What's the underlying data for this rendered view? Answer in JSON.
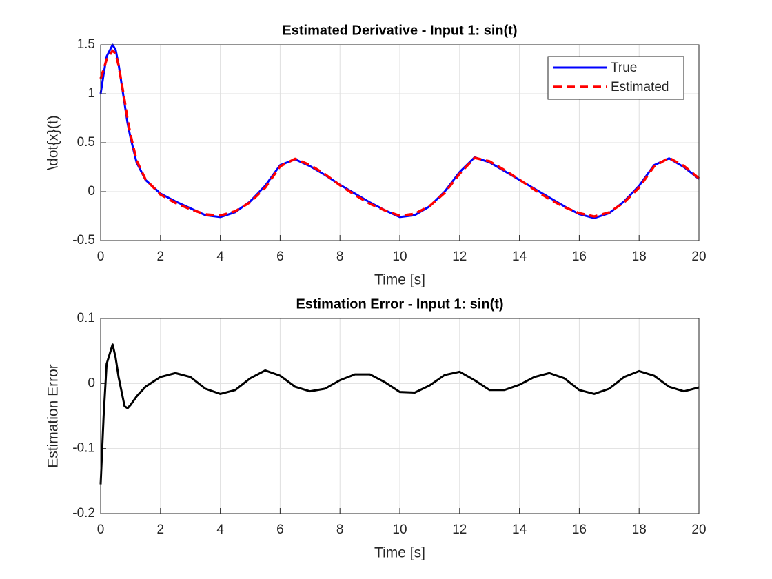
{
  "chart_data": [
    {
      "type": "line",
      "title": "Estimated Derivative - Input 1: sin(t)",
      "xlabel": "Time [s]",
      "ylabel": "\\dot{x}(t)",
      "x": [
        0,
        0.1,
        0.2,
        0.4,
        0.5,
        0.6,
        0.8,
        0.9,
        1.0,
        1.2,
        1.5,
        2,
        2.5,
        3,
        3.5,
        4,
        4.5,
        5,
        5.5,
        6,
        6.5,
        7,
        7.5,
        8,
        8.5,
        9,
        9.5,
        10,
        10.5,
        11,
        11.5,
        12,
        12.5,
        13,
        13.5,
        14,
        14.5,
        15,
        15.5,
        16,
        16.5,
        17,
        17.5,
        18,
        18.5,
        19,
        19.5,
        20
      ],
      "series": [
        {
          "name": "True",
          "color": "#0000ff",
          "linestyle": "solid",
          "values": [
            1.0,
            1.2,
            1.38,
            1.5,
            1.45,
            1.3,
            0.9,
            0.7,
            0.55,
            0.3,
            0.12,
            -0.02,
            -0.1,
            -0.17,
            -0.24,
            -0.26,
            -0.21,
            -0.1,
            0.06,
            0.27,
            0.33,
            0.26,
            0.17,
            0.07,
            -0.02,
            -0.11,
            -0.19,
            -0.26,
            -0.24,
            -0.15,
            0.0,
            0.2,
            0.35,
            0.3,
            0.21,
            0.12,
            0.03,
            -0.06,
            -0.15,
            -0.23,
            -0.27,
            -0.22,
            -0.1,
            0.06,
            0.27,
            0.34,
            0.25,
            0.13
          ]
        },
        {
          "name": "Estimated",
          "color": "#ff0000",
          "linestyle": "dashed",
          "values": [
            1.155,
            1.25,
            1.35,
            1.44,
            1.41,
            1.29,
            0.935,
            0.738,
            0.583,
            0.32,
            0.125,
            -0.03,
            -0.116,
            -0.18,
            -0.232,
            -0.244,
            -0.2,
            -0.108,
            0.04,
            0.258,
            0.335,
            0.272,
            0.178,
            0.065,
            -0.034,
            -0.124,
            -0.192,
            -0.247,
            -0.226,
            -0.147,
            -0.013,
            0.182,
            0.345,
            0.31,
            0.22,
            0.122,
            0.02,
            -0.076,
            -0.158,
            -0.22,
            -0.254,
            -0.212,
            -0.11,
            0.041,
            0.258,
            0.345,
            0.262,
            0.136
          ]
        }
      ],
      "xlim": [
        0,
        20
      ],
      "ylim": [
        -0.5,
        1.5
      ],
      "xticks": [
        0,
        2,
        4,
        6,
        8,
        10,
        12,
        14,
        16,
        18,
        20
      ],
      "yticks": [
        -0.5,
        0,
        0.5,
        1,
        1.5
      ],
      "grid": true,
      "legend": "upper right"
    },
    {
      "type": "line",
      "title": "Estimation Error - Input 1: sin(t)",
      "xlabel": "Time [s]",
      "ylabel": "Estimation Error",
      "x": [
        0,
        0.1,
        0.2,
        0.4,
        0.5,
        0.6,
        0.8,
        0.9,
        1.0,
        1.2,
        1.5,
        2,
        2.5,
        3,
        3.5,
        4,
        4.5,
        5,
        5.5,
        6,
        6.5,
        7,
        7.5,
        8,
        8.5,
        9,
        9.5,
        10,
        10.5,
        11,
        11.5,
        12,
        12.5,
        13,
        13.5,
        14,
        14.5,
        15,
        15.5,
        16,
        16.5,
        17,
        17.5,
        18,
        18.5,
        19,
        19.5,
        20
      ],
      "series": [
        {
          "color": "#000000",
          "linestyle": "solid",
          "values": [
            -0.155,
            -0.05,
            0.03,
            0.06,
            0.04,
            0.01,
            -0.035,
            -0.038,
            -0.033,
            -0.02,
            -0.005,
            0.01,
            0.016,
            0.01,
            -0.008,
            -0.016,
            -0.01,
            0.008,
            0.02,
            0.012,
            -0.005,
            -0.012,
            -0.008,
            0.005,
            0.014,
            0.014,
            0.002,
            -0.013,
            -0.014,
            -0.003,
            0.013,
            0.018,
            0.005,
            -0.01,
            -0.01,
            -0.002,
            0.01,
            0.016,
            0.008,
            -0.01,
            -0.016,
            -0.008,
            0.01,
            0.019,
            0.012,
            -0.005,
            -0.012,
            -0.006
          ]
        }
      ],
      "xlim": [
        0,
        20
      ],
      "ylim": [
        -0.2,
        0.1
      ],
      "xticks": [
        0,
        2,
        4,
        6,
        8,
        10,
        12,
        14,
        16,
        18,
        20
      ],
      "yticks": [
        -0.2,
        -0.1,
        0,
        0.1
      ],
      "grid": true
    }
  ]
}
